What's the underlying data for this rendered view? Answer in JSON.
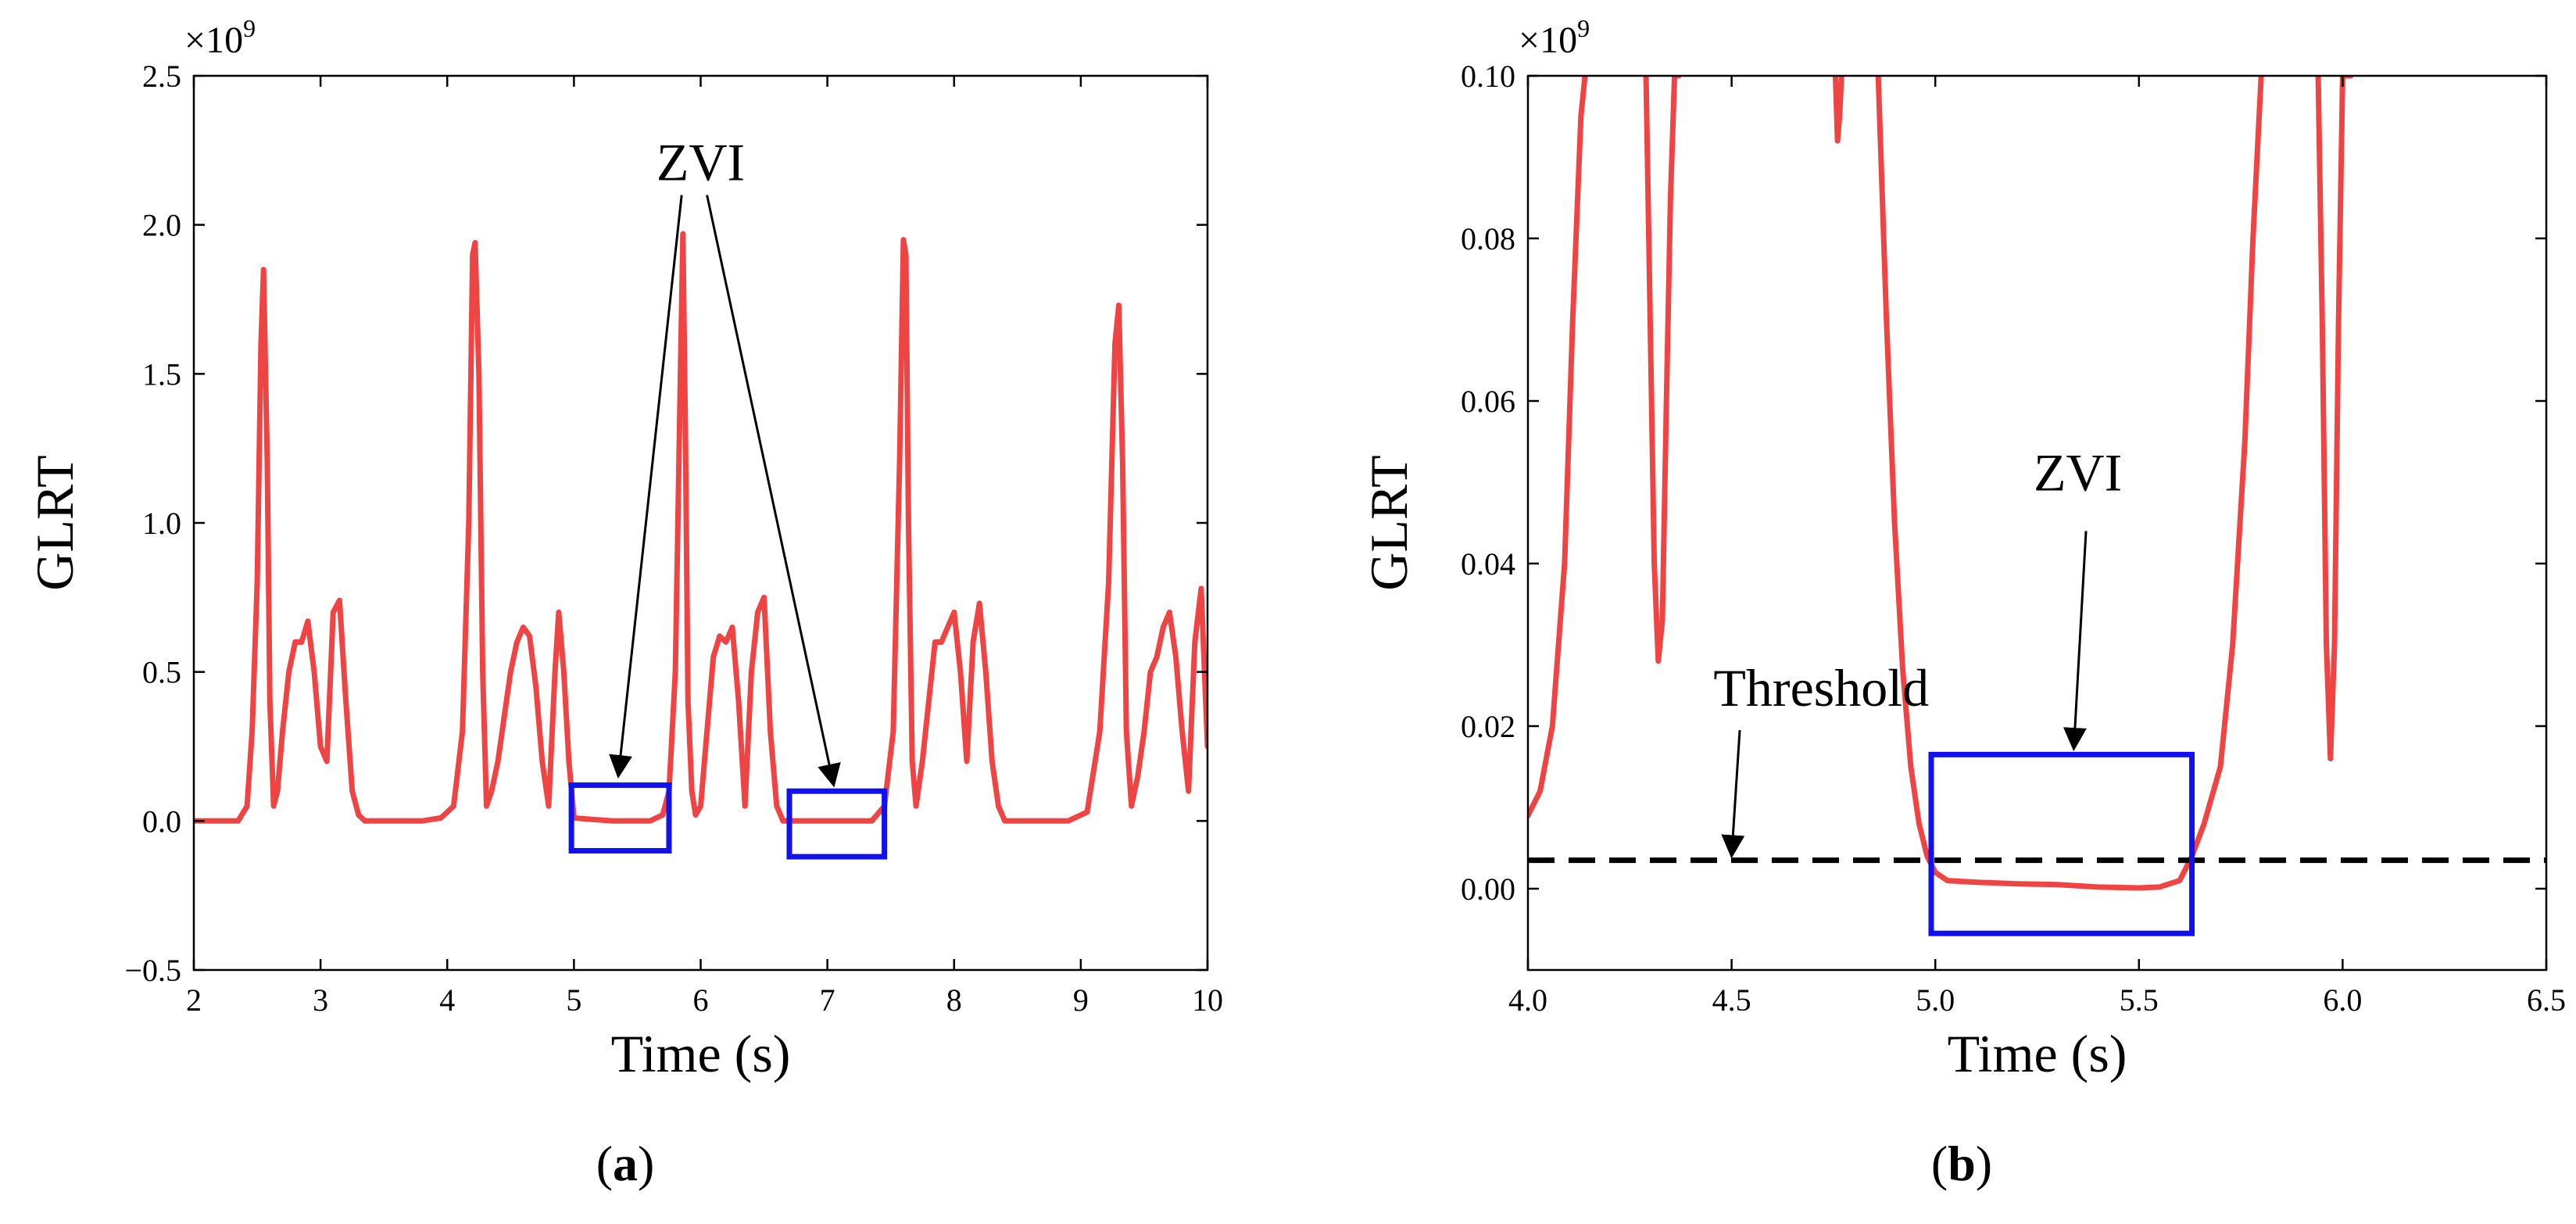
{
  "chart_data": [
    {
      "type": "line",
      "caption_letter": "a",
      "xlabel": "Time (s)",
      "ylabel": "GLRT",
      "sci_multiplier": "×10",
      "sci_exponent": "9",
      "xlim": [
        2,
        10
      ],
      "ylim": [
        -0.5,
        2.5
      ],
      "xticks": [
        "2",
        "3",
        "4",
        "5",
        "6",
        "7",
        "8",
        "9",
        "10"
      ],
      "yticks": [
        "−0.5",
        "0.0",
        "0.5",
        "1.0",
        "1.5",
        "2.0",
        "2.5"
      ],
      "grid": false,
      "series_color": "#ee4444",
      "series": [
        {
          "x": [
            2.0,
            2.35,
            2.42,
            2.46,
            2.5,
            2.53,
            2.55,
            2.58,
            2.6,
            2.63,
            2.66,
            2.7,
            2.75,
            2.8,
            2.85,
            2.9,
            2.95,
            3.0,
            3.05,
            3.1,
            3.15,
            3.2,
            3.25,
            3.3,
            3.35,
            3.5,
            3.8,
            3.95,
            4.05,
            4.12,
            4.17,
            4.2,
            4.22,
            4.25,
            4.28,
            4.31,
            4.35,
            4.4,
            4.45,
            4.5,
            4.55,
            4.6,
            4.65,
            4.7,
            4.75,
            4.8,
            4.85,
            4.88,
            4.92,
            4.96,
            5.0,
            5.3,
            5.6,
            5.7,
            5.75,
            5.8,
            5.84,
            5.86,
            5.88,
            5.9,
            5.93,
            5.96,
            6.0,
            6.05,
            6.1,
            6.15,
            6.2,
            6.25,
            6.3,
            6.35,
            6.4,
            6.45,
            6.5,
            6.55,
            6.6,
            6.65,
            6.7,
            7.0,
            7.35,
            7.45,
            7.52,
            7.57,
            7.6,
            7.62,
            7.64,
            7.67,
            7.7,
            7.75,
            7.8,
            7.85,
            7.9,
            7.95,
            8.0,
            8.05,
            8.1,
            8.15,
            8.2,
            8.25,
            8.3,
            8.35,
            8.4,
            8.5,
            8.9,
            9.05,
            9.15,
            9.22,
            9.27,
            9.3,
            9.33,
            9.36,
            9.4,
            9.45,
            9.5,
            9.55,
            9.6,
            9.65,
            9.7,
            9.75,
            9.8,
            9.85,
            9.9,
            9.95,
            10.0
          ],
          "y": [
            0.0,
            0.0,
            0.05,
            0.3,
            0.8,
            1.6,
            1.85,
            1.2,
            0.4,
            0.05,
            0.1,
            0.3,
            0.5,
            0.6,
            0.6,
            0.67,
            0.5,
            0.25,
            0.2,
            0.7,
            0.74,
            0.4,
            0.1,
            0.02,
            0.0,
            0.0,
            0.0,
            0.01,
            0.05,
            0.3,
            1.0,
            1.9,
            1.94,
            1.5,
            0.5,
            0.05,
            0.1,
            0.2,
            0.35,
            0.5,
            0.6,
            0.65,
            0.62,
            0.45,
            0.2,
            0.05,
            0.5,
            0.7,
            0.5,
            0.2,
            0.01,
            0.0,
            0.0,
            0.02,
            0.1,
            0.5,
            1.5,
            1.97,
            1.3,
            0.4,
            0.1,
            0.02,
            0.05,
            0.3,
            0.55,
            0.62,
            0.6,
            0.65,
            0.4,
            0.05,
            0.5,
            0.7,
            0.75,
            0.3,
            0.05,
            0.0,
            0.0,
            0.0,
            0.0,
            0.05,
            0.3,
            1.2,
            1.95,
            1.9,
            1.0,
            0.2,
            0.05,
            0.2,
            0.4,
            0.6,
            0.6,
            0.65,
            0.7,
            0.5,
            0.2,
            0.6,
            0.73,
            0.5,
            0.2,
            0.05,
            0.0,
            0.0,
            0.0,
            0.03,
            0.3,
            0.8,
            1.6,
            1.73,
            1.2,
            0.3,
            0.05,
            0.15,
            0.3,
            0.5,
            0.55,
            0.65,
            0.7,
            0.55,
            0.3,
            0.1,
            0.6,
            0.78,
            0.25
          ]
        }
      ],
      "boxes": [
        {
          "x0": 4.98,
          "x1": 5.75,
          "y0": -0.1,
          "y1": 0.12,
          "color": "#1111ee"
        },
        {
          "x0": 6.7,
          "x1": 7.45,
          "y0": -0.12,
          "y1": 0.1,
          "color": "#1111ee"
        }
      ],
      "annotations": [
        {
          "text": "ZVI",
          "x": 6.0,
          "y": 2.15,
          "arrows": [
            {
              "from": [
                5.85,
                2.1
              ],
              "to": [
                5.35,
                0.15
              ]
            },
            {
              "from": [
                6.05,
                2.1
              ],
              "to": [
                7.05,
                0.12
              ]
            }
          ]
        }
      ]
    },
    {
      "type": "line",
      "caption_letter": "b",
      "xlabel": "Time (s)",
      "ylabel": "GLRT",
      "sci_multiplier": "×10",
      "sci_exponent": "9",
      "xlim": [
        4.0,
        6.5
      ],
      "ylim": [
        -0.01,
        0.1
      ],
      "xticks": [
        "4.0",
        "4.5",
        "5.0",
        "5.5",
        "6.0",
        "6.5"
      ],
      "yticks": [
        "0.00",
        "0.02",
        "0.04",
        "0.06",
        "0.08",
        "0.10"
      ],
      "grid": false,
      "series_color": "#ee4444",
      "series": [
        {
          "x": [
            4.0,
            4.03,
            4.06,
            4.09,
            4.11,
            4.13,
            4.14
          ],
          "y": [
            0.009,
            0.012,
            0.02,
            0.04,
            0.07,
            0.095,
            0.1
          ]
        },
        {
          "x": [
            4.29,
            4.3,
            4.31,
            4.32,
            4.33,
            4.34,
            4.35,
            4.36,
            4.37
          ],
          "y": [
            0.1,
            0.07,
            0.04,
            0.028,
            0.033,
            0.06,
            0.085,
            0.1,
            0.1
          ]
        },
        {
          "x": [
            4.755,
            4.76,
            4.765,
            4.77
          ],
          "y": [
            0.1,
            0.092,
            0.095,
            0.1
          ]
        },
        {
          "x": [
            4.86,
            4.88,
            4.9,
            4.92,
            4.94,
            4.96,
            4.98,
            5.0,
            5.03,
            5.1,
            5.2,
            5.3,
            5.4,
            5.5,
            5.55,
            5.6,
            5.63,
            5.66,
            5.7,
            5.73,
            5.76,
            5.78,
            5.8
          ],
          "y": [
            0.1,
            0.07,
            0.045,
            0.027,
            0.015,
            0.008,
            0.004,
            0.002,
            0.001,
            0.0008,
            0.0006,
            0.0005,
            0.0002,
            0.0001,
            0.0002,
            0.001,
            0.004,
            0.008,
            0.015,
            0.03,
            0.055,
            0.08,
            0.1
          ]
        },
        {
          "x": [
            5.94,
            5.95,
            5.96,
            5.97,
            5.98,
            5.99,
            6.0,
            6.01,
            6.02
          ],
          "y": [
            0.1,
            0.07,
            0.03,
            0.016,
            0.03,
            0.07,
            0.1,
            0.1,
            0.1
          ]
        }
      ],
      "threshold": {
        "y": 0.0035,
        "color": "#000000"
      },
      "boxes": [
        {
          "x0": 4.99,
          "x1": 5.63,
          "y0": -0.0055,
          "y1": 0.0165,
          "color": "#1111ee"
        }
      ],
      "annotations": [
        {
          "text": "Threshold",
          "x": 4.72,
          "y": 0.0225,
          "arrows": [
            {
              "from": [
                4.52,
                0.0195
              ],
              "to": [
                4.5,
                0.004
              ]
            }
          ]
        },
        {
          "text": "ZVI",
          "x": 5.35,
          "y": 0.049,
          "arrows": [
            {
              "from": [
                5.37,
                0.044
              ],
              "to": [
                5.34,
                0.0172
              ]
            }
          ]
        }
      ]
    }
  ]
}
